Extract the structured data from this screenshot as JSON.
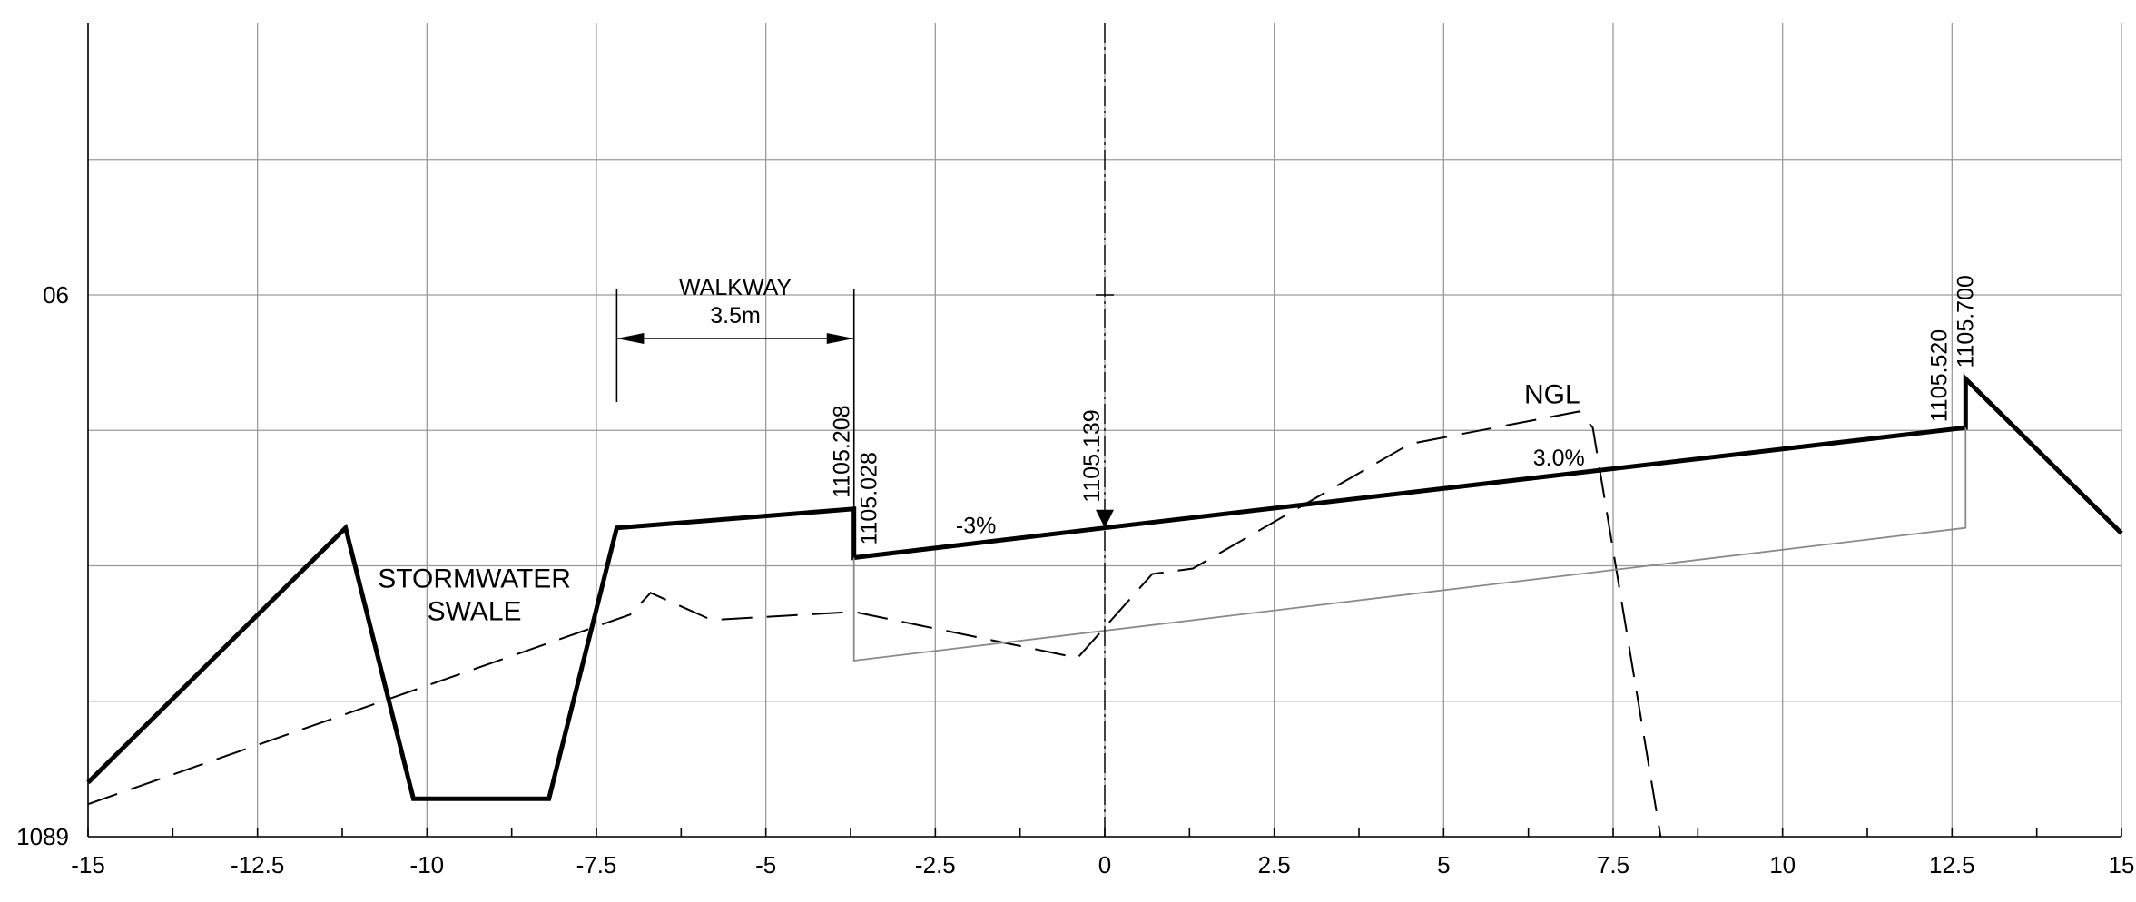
{
  "chart_data": {
    "type": "line",
    "title": "",
    "xlabel": "",
    "ylabel": "",
    "xlim": [
      -15,
      15
    ],
    "ylim": [
      1089,
      1109
    ],
    "x_ticks": [
      -15,
      -12.5,
      -10,
      -7.5,
      -5,
      -2.5,
      0,
      2.5,
      5,
      7.5,
      10,
      12.5,
      15
    ],
    "x_tick_labels": [
      "-15",
      "-12.5",
      "-10",
      "-7.5",
      "-5",
      "-2.5",
      "0",
      "2.5",
      "5",
      "7.5",
      "10",
      "12.5",
      "15"
    ],
    "y_gridlines": [
      1089,
      1094,
      1099,
      1104,
      1109,
      1114
    ],
    "y_tick_labels": [
      {
        "y": 1109,
        "text": "06"
      },
      {
        "y": 1089,
        "text": "1089"
      }
    ],
    "grid": true,
    "series": [
      {
        "role": "design",
        "style": "solid-thick",
        "points": [
          [
            -15,
            1091.0
          ],
          [
            -11.2,
            1100.4
          ],
          [
            -10.2,
            1090.4
          ],
          [
            -8.2,
            1090.4
          ],
          [
            -7.2,
            1100.4
          ],
          [
            -3.7,
            1101.1
          ],
          [
            -3.7,
            1099.3
          ],
          [
            0,
            1100.4
          ],
          [
            12.7,
            1104.1
          ],
          [
            12.7,
            1105.9
          ],
          [
            15,
            1100.2
          ]
        ]
      },
      {
        "role": "ngl",
        "style": "dashed",
        "name": "NGL",
        "points": [
          [
            -15,
            1090.2
          ],
          [
            -7.0,
            1097.2
          ],
          [
            -6.7,
            1098.0
          ],
          [
            -5.8,
            1097.0
          ],
          [
            -3.7,
            1097.3
          ],
          [
            -0.4,
            1095.6
          ],
          [
            0.7,
            1098.7
          ],
          [
            1.3,
            1098.9
          ],
          [
            4.5,
            1103.5
          ],
          [
            7.0,
            1104.7
          ],
          [
            7.2,
            1104.1
          ],
          [
            8.2,
            1089.0
          ]
        ]
      },
      {
        "role": "subgrade",
        "style": "solid-thin-grey",
        "points": [
          [
            -3.7,
            1099.3
          ],
          [
            -3.7,
            1095.5
          ],
          [
            12.7,
            1100.4
          ],
          [
            12.7,
            1104.1
          ]
        ]
      }
    ],
    "annotations": {
      "walkway_label": "WALKWAY",
      "walkway_width": "3.5m",
      "walkway_x": [
        -7.2,
        -3.7
      ],
      "swale_line1": "STORMWATER",
      "swale_line2": "SWALE",
      "swale_x": -9.3,
      "swale_y": 1098.2,
      "ngl_label": "NGL",
      "ngl_label_x": 6.6,
      "ngl_label_y": 1105.0,
      "slope_left": "-3%",
      "slope_left_x": -1.9,
      "slope_left_y": 1100.2,
      "slope_right": "3.0%",
      "slope_right_x": 6.7,
      "slope_right_y": 1102.7,
      "centerline_x": 0,
      "elevations": [
        {
          "text": "1105.208",
          "x": -3.7,
          "y": 1101.1
        },
        {
          "text": "1105.028",
          "x": -3.7,
          "y": 1099.3
        },
        {
          "text": "1105.139",
          "x": 0,
          "y": 1100.4
        },
        {
          "text": "1105.520",
          "x": 12.7,
          "y": 1104.1
        },
        {
          "text": "1105.700",
          "x": 12.7,
          "y": 1105.9
        }
      ]
    }
  }
}
